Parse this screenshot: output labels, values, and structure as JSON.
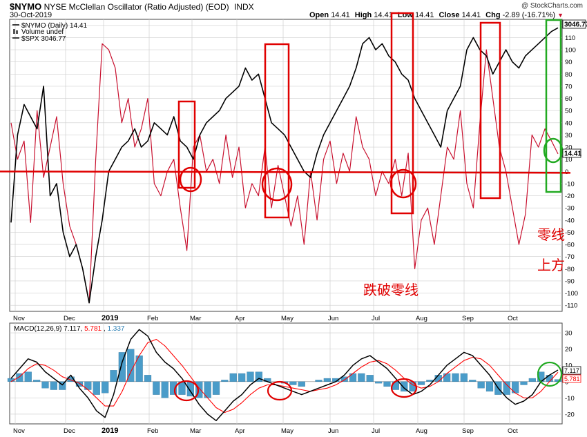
{
  "header": {
    "symbol": "$NYMO",
    "title": "NYSE McClellan Oscillator (Ratio Adjusted) (EOD)",
    "exchange": "INDX",
    "date": "30-Oct-2019",
    "watermark": "@ StockCharts.com",
    "ohlc": {
      "open_label": "Open",
      "open": "14.41",
      "high_label": "High",
      "high": "14.41",
      "low_label": "Low",
      "low": "14.41",
      "close_label": "Close",
      "close": "14.41",
      "chg_label": "Chg",
      "chg": "-2.89 (-16.71%)"
    }
  },
  "legend": {
    "nymo": "$NYMO (Daily) 14.41",
    "volume": "Volume undef",
    "spx": "$SPX 3046.77"
  },
  "price_tags": {
    "spx": "3046.77",
    "nymo": "14.41",
    "macd": "7.117",
    "signal": "5.781"
  },
  "annotations": {
    "zero_break": "跌破零线",
    "above_zero_1": "零线",
    "above_zero_2": "上方"
  },
  "colors": {
    "nymo": "#c8102e",
    "spx": "#000000",
    "zero_line": "#e00000",
    "macd_line": "#000000",
    "signal_line": "#ff0000",
    "histogram": "#4a9cc9",
    "box_red": "#e00000",
    "box_green": "#22aa22"
  },
  "chart_data": [
    {
      "type": "line",
      "title": "NYSE McClellan Oscillator (Ratio Adjusted) (EOD)",
      "x_ticks": [
        "Nov",
        "Dec",
        "2019",
        "Feb",
        "Mar",
        "Apr",
        "May",
        "Jun",
        "Jul",
        "Aug",
        "Sep",
        "Oct"
      ],
      "y_ticks": [
        120,
        110,
        100,
        90,
        80,
        70,
        60,
        50,
        40,
        30,
        20,
        10,
        0,
        -10,
        -20,
        -30,
        -40,
        -50,
        -60,
        -70,
        -80,
        -90,
        -100,
        -110
      ],
      "ylim": [
        -115,
        125
      ],
      "series": [
        {
          "name": "$NYMO (Daily) 14.41",
          "values": [
            40,
            10,
            25,
            -42,
            50,
            -5,
            20,
            45,
            -10,
            -45,
            -60,
            -80,
            -108,
            10,
            105,
            100,
            85,
            40,
            60,
            20,
            35,
            60,
            -10,
            -20,
            0,
            10,
            -30,
            -65,
            20,
            30,
            0,
            10,
            -10,
            30,
            -5,
            20,
            -30,
            -10,
            -20,
            20,
            -30,
            5,
            -20,
            -45,
            -20,
            -60,
            0,
            -40,
            10,
            25,
            -10,
            15,
            0,
            45,
            20,
            10,
            -20,
            0,
            -10,
            10,
            -20,
            15,
            -80,
            -40,
            -30,
            -60,
            -20,
            20,
            10,
            50,
            -10,
            -30,
            40,
            100,
            60,
            20,
            0,
            -30,
            -60,
            -35,
            30,
            20,
            35,
            25,
            14.41
          ]
        },
        {
          "name": "$SPX 3046.77",
          "values": [
            -42,
            30,
            55,
            45,
            35,
            70,
            -20,
            -10,
            -50,
            -70,
            -60,
            -80,
            -108,
            -70,
            -40,
            0,
            10,
            20,
            25,
            35,
            20,
            25,
            40,
            35,
            30,
            45,
            25,
            20,
            10,
            30,
            40,
            45,
            50,
            60,
            65,
            70,
            85,
            75,
            80,
            60,
            40,
            35,
            30,
            20,
            10,
            0,
            -5,
            15,
            30,
            40,
            50,
            60,
            70,
            85,
            105,
            110,
            100,
            105,
            95,
            90,
            80,
            75,
            60,
            50,
            40,
            30,
            20,
            50,
            60,
            70,
            100,
            110,
            100,
            95,
            80,
            90,
            100,
            90,
            85,
            95,
            100,
            105,
            110,
            115,
            118
          ]
        }
      ]
    },
    {
      "type": "line",
      "title": "MACD(12,26,9) 7.117, 5.781, 1.337",
      "x_ticks": [
        "Nov",
        "Dec",
        "2019",
        "Feb",
        "Mar",
        "Apr",
        "May",
        "Jun",
        "Jul",
        "Aug",
        "Sep",
        "Oct"
      ],
      "y_ticks": [
        30,
        20,
        10,
        0,
        -10,
        -20
      ],
      "ylim": [
        -26,
        36
      ],
      "series": [
        {
          "name": "MACD(12,26,9)",
          "values": [
            2,
            8,
            14,
            12,
            6,
            2,
            -2,
            4,
            -4,
            -10,
            -18,
            -22,
            -8,
            12,
            26,
            32,
            28,
            18,
            12,
            8,
            2,
            -6,
            -14,
            -20,
            -24,
            -18,
            -12,
            -8,
            -2,
            2,
            0,
            -2,
            -4,
            -6,
            -8,
            -6,
            -4,
            -2,
            0,
            4,
            10,
            14,
            16,
            12,
            8,
            2,
            -4,
            -8,
            -6,
            -2,
            4,
            10,
            14,
            18,
            16,
            10,
            4,
            -4,
            -10,
            -14,
            -12,
            -8,
            0,
            4,
            7.117
          ]
        },
        {
          "name": "signal",
          "values": [
            0,
            3,
            8,
            11,
            10,
            7,
            3,
            1,
            -1,
            -5,
            -10,
            -15,
            -15,
            -6,
            6,
            16,
            24,
            26,
            22,
            16,
            10,
            3,
            -4,
            -10,
            -16,
            -19,
            -17,
            -13,
            -8,
            -4,
            -2,
            -2,
            -3,
            -4,
            -5,
            -6,
            -5,
            -4,
            -2,
            1,
            5,
            9,
            12,
            13,
            11,
            7,
            2,
            -2,
            -4,
            -3,
            0,
            5,
            9,
            13,
            15,
            14,
            10,
            4,
            -2,
            -7,
            -10,
            -10,
            -6,
            0,
            5.781
          ]
        },
        {
          "name": "histogram",
          "values": [
            2,
            5,
            6,
            1,
            -4,
            -5,
            -5,
            3,
            -3,
            -5,
            -8,
            -7,
            7,
            18,
            20,
            16,
            4,
            -8,
            -10,
            -8,
            -8,
            -9,
            -10,
            -10,
            -8,
            1,
            5,
            5,
            6,
            6,
            2,
            0,
            -1,
            -2,
            -3,
            0,
            1,
            2,
            2,
            3,
            5,
            5,
            4,
            -1,
            -3,
            -5,
            -6,
            -6,
            -2,
            1,
            4,
            5,
            5,
            5,
            1,
            -4,
            -6,
            -8,
            -8,
            -7,
            -2,
            2,
            6,
            4,
            1.337
          ]
        }
      ]
    }
  ]
}
